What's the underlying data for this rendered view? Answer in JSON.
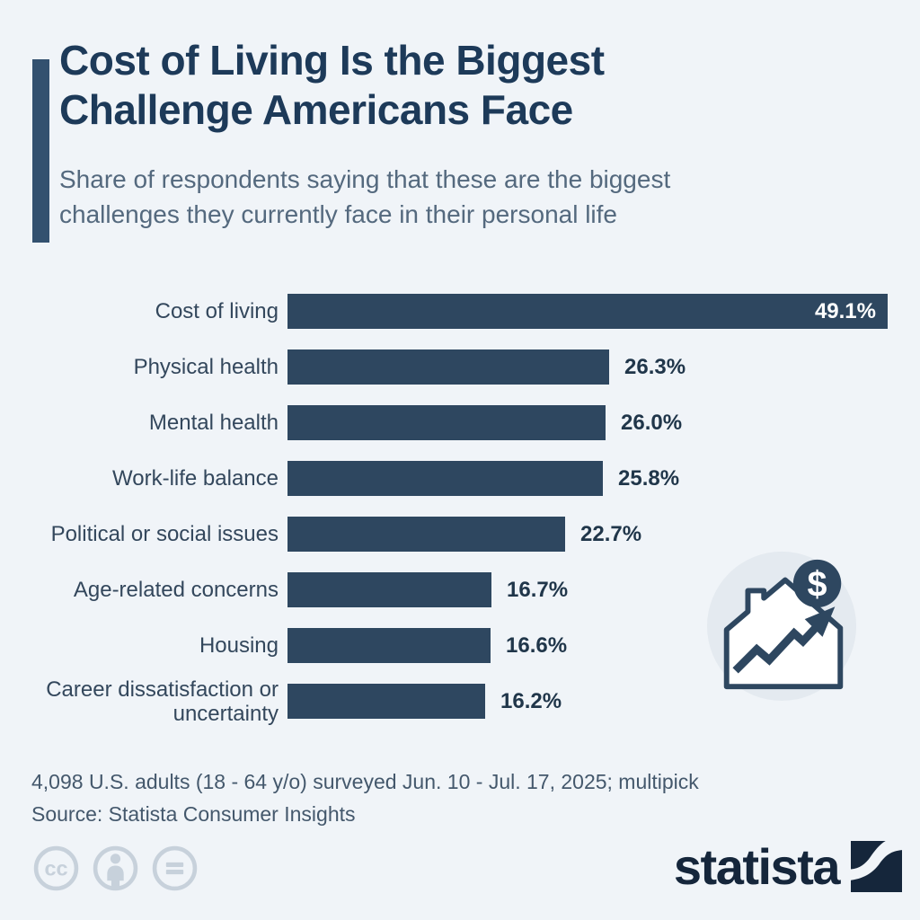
{
  "header": {
    "title_line1": "Cost of Living Is the Biggest",
    "title_line2": "Challenge Americans Face",
    "subtitle_line1": "Share of respondents saying that these are the biggest",
    "subtitle_line2": "challenges they currently face in their personal life"
  },
  "chart_data": {
    "type": "bar",
    "orientation": "horizontal",
    "title": "Cost of Living Is the Biggest Challenge Americans Face",
    "unit": "%",
    "categories": [
      "Cost of living",
      "Physical health",
      "Mental health",
      "Work-life balance",
      "Political or social issues",
      "Age-related concerns",
      "Housing",
      "Career dissatisfaction or uncertainty"
    ],
    "values": [
      49.1,
      26.3,
      26.0,
      25.8,
      22.7,
      16.7,
      16.6,
      16.2
    ],
    "value_labels": [
      "49.1%",
      "26.3%",
      "26.0%",
      "25.8%",
      "22.7%",
      "16.7%",
      "16.6%",
      "16.2%"
    ],
    "xlim": [
      0,
      49.1
    ],
    "grid": false,
    "legend": false,
    "first_value_label_inside_bar": true,
    "bar_color": "#2e4760"
  },
  "icon": {
    "name": "house-price-rising-icon",
    "dollar_sign": "$"
  },
  "footer": {
    "note": "4,098 U.S. adults (18 - 64 y/o) surveyed Jun. 10 - Jul. 17, 2025; multipick",
    "source": "Source: Statista Consumer Insights"
  },
  "license": {
    "icons": [
      "cc-icon",
      "attribution-icon",
      "equals-icon"
    ],
    "cc_text": "cc"
  },
  "branding": {
    "logo_text": "statista"
  },
  "colors": {
    "background": "#f0f4f8",
    "bar": "#2e4760",
    "title": "#1d3a59",
    "subtitle": "#54697e",
    "accent_bar": "#33516f",
    "value_label": "#20364a",
    "value_label_inside": "#ffffff",
    "category_label": "#33475c",
    "footer_text": "#44586c",
    "license_icon": "#c7d1db",
    "logo": "#15263b",
    "icon_circle_bg": "#e4eaf0"
  }
}
